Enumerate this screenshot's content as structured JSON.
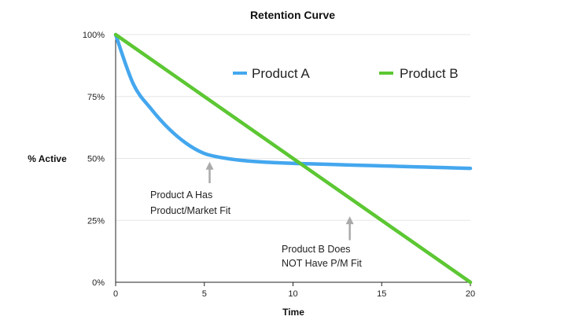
{
  "chart_data": {
    "type": "line",
    "title": "Retention Curve",
    "xlabel": "Time",
    "ylabel": "% Active",
    "xlim": [
      0,
      20
    ],
    "ylim": [
      0,
      100
    ],
    "x_ticks": [
      "0",
      "5",
      "10",
      "15",
      "20"
    ],
    "y_ticks": [
      "0%",
      "25%",
      "50%",
      "75%",
      "100%"
    ],
    "grid": true,
    "legend_position": "top",
    "series": [
      {
        "name": "Product A",
        "color": "#44a7ee",
        "x": [
          0,
          1,
          2,
          3,
          4,
          5,
          6,
          7,
          8,
          9,
          10,
          11,
          12,
          13,
          14,
          15,
          16,
          17,
          18,
          19,
          20
        ],
        "y": [
          100,
          80,
          70,
          62,
          56,
          52,
          50.3,
          49.3,
          48.7,
          48.3,
          48,
          47.8,
          47.6,
          47.4,
          47.2,
          47,
          46.8,
          46.6,
          46.4,
          46.2,
          46
        ]
      },
      {
        "name": "Product B",
        "color": "#5cc733",
        "x": [
          0,
          20
        ],
        "y": [
          100,
          0
        ]
      }
    ],
    "annotations": [
      {
        "lines": [
          "Product A Has",
          "Product/Market Fit"
        ],
        "arrow_x": 5.3,
        "arrow_y_from": 40,
        "arrow_y_to": 48
      },
      {
        "lines": [
          "Product B Does",
          "NOT Have P/M Fit"
        ],
        "arrow_x": 13.2,
        "arrow_y_from": 17,
        "arrow_y_to": 26
      }
    ]
  }
}
